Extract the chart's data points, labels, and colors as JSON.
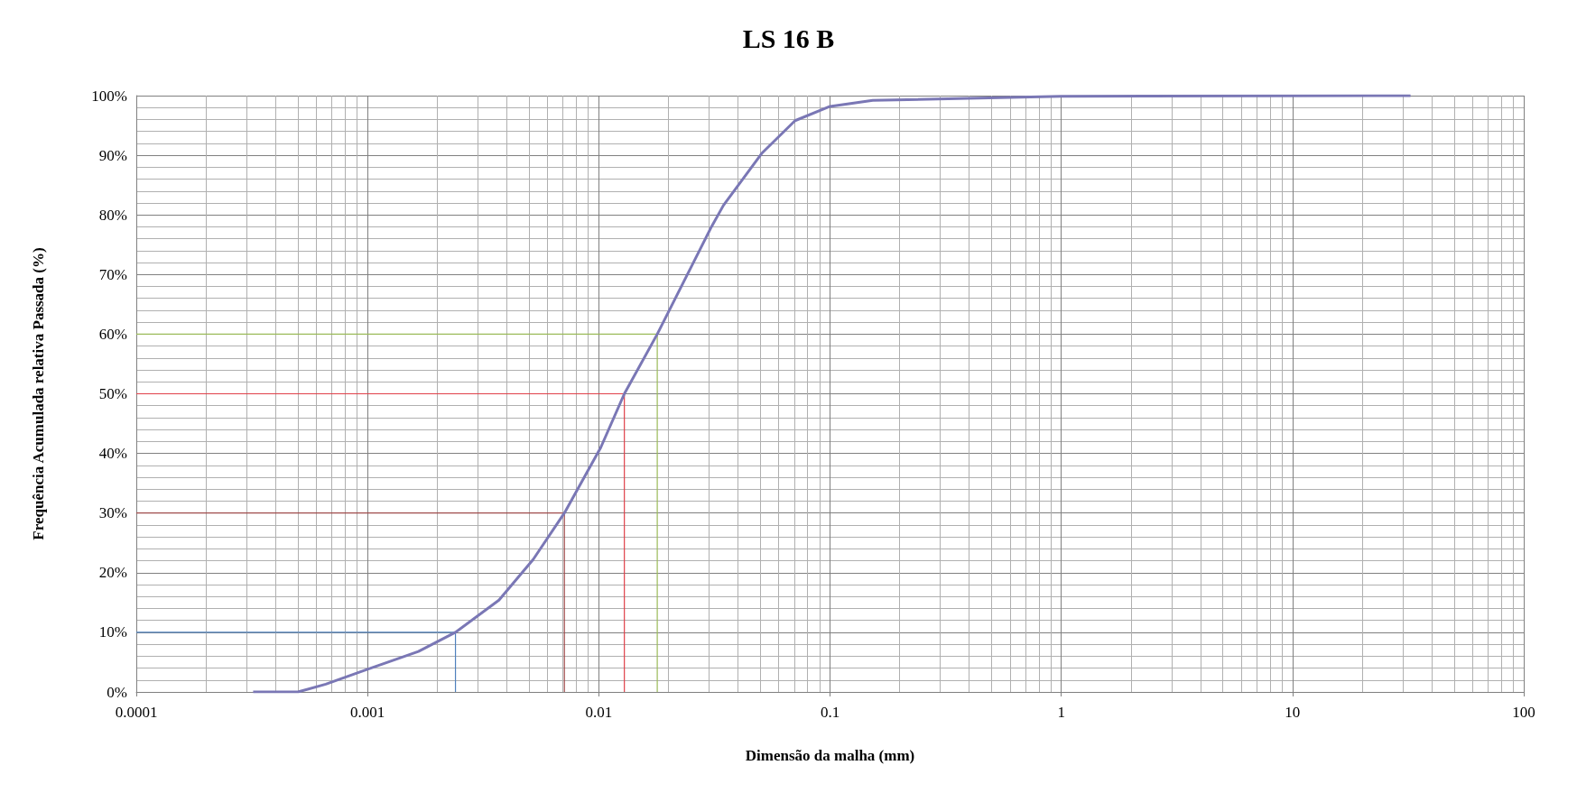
{
  "chart_data": {
    "type": "line",
    "title": "LS 16 B",
    "xlabel": "Dimensão da malha (mm)",
    "ylabel": "Frequência Acumulada relativa Passada (%)",
    "log": "x",
    "grid": true,
    "marker": "none",
    "line_style": "solid",
    "xlim": [
      0.0001,
      100
    ],
    "xticks": [
      0.0001,
      0.001,
      0.01,
      0.1,
      1,
      10,
      100
    ],
    "ylim": [
      0,
      100
    ],
    "yticks": [
      {
        "value": 0,
        "label": "0%"
      },
      {
        "value": 10,
        "label": "10%"
      },
      {
        "value": 20,
        "label": "20%"
      },
      {
        "value": 30,
        "label": "30%"
      },
      {
        "value": 40,
        "label": "40%"
      },
      {
        "value": 50,
        "label": "50%"
      },
      {
        "value": 60,
        "label": "60%"
      },
      {
        "value": 70,
        "label": "70%"
      },
      {
        "value": 80,
        "label": "80%"
      },
      {
        "value": 90,
        "label": "90%"
      },
      {
        "value": 100,
        "label": "100%"
      }
    ],
    "series": [
      {
        "color": "#4f81bd",
        "x": [
          0.0001,
          0.0024,
          0.0024
        ],
        "values": [
          10,
          10,
          0
        ]
      },
      {
        "color": "#a04b4b",
        "x": [
          0.0001,
          0.0071,
          0.0071
        ],
        "values": [
          30,
          30,
          0
        ]
      },
      {
        "color": "#e0404a",
        "x": [
          0.0001,
          0.0129,
          0.0129
        ],
        "values": [
          50,
          50,
          0
        ]
      },
      {
        "color": "#9bbb59",
        "x": [
          0.0001,
          0.0179,
          0.0179
        ],
        "values": [
          60,
          60,
          0
        ]
      },
      {
        "color": "#7a77b5",
        "x": [
          0.00032,
          0.0005,
          0.00066,
          0.001,
          0.00166,
          0.0024,
          0.0037,
          0.0052,
          0.0071,
          0.0102,
          0.0129,
          0.0179,
          0.0307,
          0.0346,
          0.0509,
          0.0706,
          0.1,
          0.153,
          1,
          32.4
        ],
        "values": [
          0,
          0,
          1.3,
          3.8,
          6.8,
          10,
          15.4,
          22.2,
          30,
          41,
          50,
          60,
          78,
          81.6,
          90.4,
          95.8,
          98.2,
          99.2,
          99.9,
          100
        ]
      }
    ]
  }
}
